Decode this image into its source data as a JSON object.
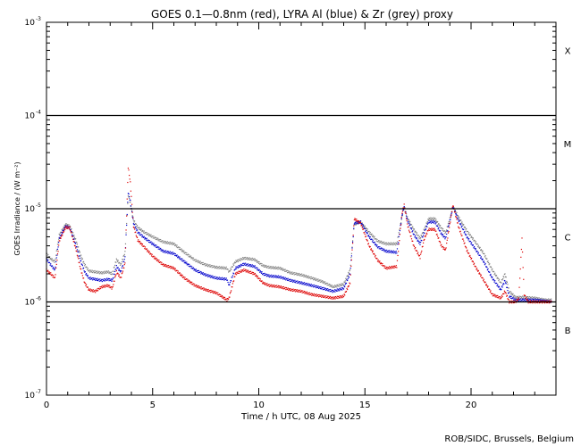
{
  "chart_data": {
    "type": "scatter",
    "title": "GOES 0.1—0.8nm (red), LYRA Al (blue) & Zr (grey) proxy",
    "xlabel": "Time / h UTC, 08 Aug 2025",
    "ylabel": "GOES Irradiance / (W m⁻²)",
    "credit": "ROB/SIDC, Brussels, Belgium",
    "x_scale": "linear",
    "y_scale": "log",
    "xlim": [
      0,
      24
    ],
    "ylim": [
      1e-07,
      0.001
    ],
    "x_ticks": [
      0,
      5,
      10,
      15,
      20
    ],
    "x_tick_labels": [
      "0",
      "5",
      "10",
      "15",
      "20"
    ],
    "y_ticks": [
      1e-07,
      1e-06,
      1e-05,
      0.0001,
      0.001
    ],
    "y_tick_labels": [
      {
        "base": "10",
        "exp": "-7"
      },
      {
        "base": "10",
        "exp": "-6"
      },
      {
        "base": "10",
        "exp": "-5"
      },
      {
        "base": "10",
        "exp": "-4"
      },
      {
        "base": "10",
        "exp": "-3"
      }
    ],
    "flare_class_lines": [
      1e-06,
      1e-05,
      0.0001
    ],
    "flare_classes": [
      {
        "label": "X",
        "y": 0.0005
      },
      {
        "label": "M",
        "y": 5e-05
      },
      {
        "label": "C",
        "y": 5e-06
      },
      {
        "label": "B",
        "y": 5e-07
      }
    ],
    "series": [
      {
        "color": "#808080",
        "points": [
          [
            0,
            3.3e-06
          ],
          [
            0.2,
            2.9e-06
          ],
          [
            0.4,
            2.7e-06
          ],
          [
            0.6,
            5.2e-06
          ],
          [
            0.9,
            6.8e-06
          ],
          [
            1.1,
            6.5e-06
          ],
          [
            1.4,
            4.5e-06
          ],
          [
            1.6,
            3.2e-06
          ],
          [
            1.8,
            2.5e-06
          ],
          [
            2.0,
            2.15e-06
          ],
          [
            2.3,
            2.1e-06
          ],
          [
            2.6,
            2.05e-06
          ],
          [
            2.9,
            2.1e-06
          ],
          [
            3.1,
            2e-06
          ],
          [
            3.3,
            2.85e-06
          ],
          [
            3.5,
            2.5e-06
          ],
          [
            3.7,
            3.4e-06
          ],
          [
            3.85,
            1.4e-05
          ],
          [
            3.95,
            1.15e-05
          ],
          [
            4.1,
            7.5e-06
          ],
          [
            4.3,
            6.3e-06
          ],
          [
            4.6,
            5.6e-06
          ],
          [
            5.0,
            5e-06
          ],
          [
            5.5,
            4.4e-06
          ],
          [
            6.0,
            4.2e-06
          ],
          [
            6.5,
            3.4e-06
          ],
          [
            7.0,
            2.8e-06
          ],
          [
            7.5,
            2.5e-06
          ],
          [
            8.0,
            2.35e-06
          ],
          [
            8.5,
            2.3e-06
          ],
          [
            8.6,
            2.1e-06
          ],
          [
            8.9,
            2.7e-06
          ],
          [
            9.3,
            2.95e-06
          ],
          [
            9.8,
            2.85e-06
          ],
          [
            10.2,
            2.45e-06
          ],
          [
            10.5,
            2.35e-06
          ],
          [
            11.0,
            2.3e-06
          ],
          [
            11.5,
            2.05e-06
          ],
          [
            12.0,
            1.95e-06
          ],
          [
            12.5,
            1.8e-06
          ],
          [
            13.0,
            1.65e-06
          ],
          [
            13.5,
            1.45e-06
          ],
          [
            14.0,
            1.55e-06
          ],
          [
            14.3,
            2.2e-06
          ],
          [
            14.5,
            6.8e-06
          ],
          [
            14.8,
            7.2e-06
          ],
          [
            15.2,
            5.6e-06
          ],
          [
            15.6,
            4.5e-06
          ],
          [
            16.0,
            4.2e-06
          ],
          [
            16.5,
            4.2e-06
          ],
          [
            16.75,
            8.2e-06
          ],
          [
            16.85,
            1.05e-05
          ],
          [
            17.0,
            8e-06
          ],
          [
            17.3,
            6e-06
          ],
          [
            17.6,
            4.8e-06
          ],
          [
            17.8,
            6e-06
          ],
          [
            18.0,
            7.8e-06
          ],
          [
            18.3,
            7.8e-06
          ],
          [
            18.6,
            6.2e-06
          ],
          [
            18.8,
            5.5e-06
          ],
          [
            19.0,
            7.8e-06
          ],
          [
            19.15,
            1.05e-05
          ],
          [
            19.4,
            8.2e-06
          ],
          [
            19.8,
            5.8e-06
          ],
          [
            20.2,
            4.4e-06
          ],
          [
            20.6,
            3.3e-06
          ],
          [
            21.0,
            2.2e-06
          ],
          [
            21.4,
            1.6e-06
          ],
          [
            21.6,
            2e-06
          ],
          [
            21.8,
            1.3e-06
          ],
          [
            22.1,
            1.12e-06
          ],
          [
            22.5,
            1.12e-06
          ],
          [
            23.0,
            1.1e-06
          ],
          [
            23.5,
            1.05e-06
          ],
          [
            23.8,
            1.05e-06
          ]
        ]
      },
      {
        "color": "#0000cc",
        "points": [
          [
            0,
            2.9e-06
          ],
          [
            0.2,
            2.5e-06
          ],
          [
            0.4,
            2.2e-06
          ],
          [
            0.6,
            4.8e-06
          ],
          [
            0.9,
            6.5e-06
          ],
          [
            1.1,
            6.2e-06
          ],
          [
            1.4,
            4e-06
          ],
          [
            1.6,
            2.8e-06
          ],
          [
            1.8,
            2.1e-06
          ],
          [
            2.0,
            1.8e-06
          ],
          [
            2.3,
            1.75e-06
          ],
          [
            2.6,
            1.7e-06
          ],
          [
            2.9,
            1.75e-06
          ],
          [
            3.1,
            1.7e-06
          ],
          [
            3.3,
            2.4e-06
          ],
          [
            3.5,
            2.1e-06
          ],
          [
            3.7,
            3e-06
          ],
          [
            3.85,
            1.5e-05
          ],
          [
            3.95,
            1.2e-05
          ],
          [
            4.1,
            7e-06
          ],
          [
            4.3,
            5.6e-06
          ],
          [
            4.6,
            4.9e-06
          ],
          [
            5.0,
            4.2e-06
          ],
          [
            5.5,
            3.5e-06
          ],
          [
            6.0,
            3.3e-06
          ],
          [
            6.5,
            2.7e-06
          ],
          [
            7.0,
            2.2e-06
          ],
          [
            7.5,
            1.95e-06
          ],
          [
            8.0,
            1.8e-06
          ],
          [
            8.5,
            1.75e-06
          ],
          [
            8.6,
            1.5e-06
          ],
          [
            8.9,
            2.3e-06
          ],
          [
            9.3,
            2.55e-06
          ],
          [
            9.8,
            2.4e-06
          ],
          [
            10.2,
            2e-06
          ],
          [
            10.5,
            1.9e-06
          ],
          [
            11.0,
            1.85e-06
          ],
          [
            11.5,
            1.7e-06
          ],
          [
            12.0,
            1.6e-06
          ],
          [
            12.5,
            1.5e-06
          ],
          [
            13.0,
            1.4e-06
          ],
          [
            13.5,
            1.3e-06
          ],
          [
            14.0,
            1.4e-06
          ],
          [
            14.3,
            2e-06
          ],
          [
            14.5,
            7e-06
          ],
          [
            14.8,
            7.2e-06
          ],
          [
            15.2,
            5e-06
          ],
          [
            15.6,
            3.9e-06
          ],
          [
            16.0,
            3.5e-06
          ],
          [
            16.5,
            3.4e-06
          ],
          [
            16.75,
            8.5e-06
          ],
          [
            16.85,
            1.05e-05
          ],
          [
            17.0,
            7.6e-06
          ],
          [
            17.3,
            5.3e-06
          ],
          [
            17.6,
            4.2e-06
          ],
          [
            17.8,
            5.6e-06
          ],
          [
            18.0,
            7.2e-06
          ],
          [
            18.3,
            7.2e-06
          ],
          [
            18.6,
            5.4e-06
          ],
          [
            18.8,
            4.8e-06
          ],
          [
            19.0,
            7.4e-06
          ],
          [
            19.15,
            1.05e-05
          ],
          [
            19.4,
            7.6e-06
          ],
          [
            19.8,
            5e-06
          ],
          [
            20.2,
            3.7e-06
          ],
          [
            20.6,
            2.7e-06
          ],
          [
            21.0,
            1.8e-06
          ],
          [
            21.4,
            1.35e-06
          ],
          [
            21.6,
            1.7e-06
          ],
          [
            21.8,
            1.15e-06
          ],
          [
            22.1,
            1.05e-06
          ],
          [
            22.5,
            1.05e-06
          ],
          [
            23.0,
            1.05e-06
          ],
          [
            23.5,
            1.02e-06
          ],
          [
            23.8,
            1e-06
          ]
        ]
      },
      {
        "color": "#dd0000",
        "points": [
          [
            0,
            2.2e-06
          ],
          [
            0.2,
            2e-06
          ],
          [
            0.4,
            1.8e-06
          ],
          [
            0.6,
            4.5e-06
          ],
          [
            0.9,
            6.3e-06
          ],
          [
            1.1,
            6.2e-06
          ],
          [
            1.4,
            3.6e-06
          ],
          [
            1.6,
            2.3e-06
          ],
          [
            1.8,
            1.6e-06
          ],
          [
            2.0,
            1.35e-06
          ],
          [
            2.3,
            1.3e-06
          ],
          [
            2.6,
            1.45e-06
          ],
          [
            2.9,
            1.5e-06
          ],
          [
            3.1,
            1.4e-06
          ],
          [
            3.3,
            2.1e-06
          ],
          [
            3.5,
            1.8e-06
          ],
          [
            3.7,
            2.6e-06
          ],
          [
            3.85,
            2.8e-05
          ],
          [
            3.95,
            1.9e-05
          ],
          [
            4.1,
            6.5e-06
          ],
          [
            4.3,
            4.6e-06
          ],
          [
            4.6,
            3.9e-06
          ],
          [
            5.0,
            3.1e-06
          ],
          [
            5.5,
            2.5e-06
          ],
          [
            6.0,
            2.3e-06
          ],
          [
            6.5,
            1.8e-06
          ],
          [
            7.0,
            1.5e-06
          ],
          [
            7.5,
            1.35e-06
          ],
          [
            8.0,
            1.25e-06
          ],
          [
            8.5,
            1.05e-06
          ],
          [
            8.6,
            1.1e-06
          ],
          [
            8.9,
            2e-06
          ],
          [
            9.3,
            2.2e-06
          ],
          [
            9.8,
            2e-06
          ],
          [
            10.2,
            1.6e-06
          ],
          [
            10.5,
            1.5e-06
          ],
          [
            11.0,
            1.45e-06
          ],
          [
            11.5,
            1.35e-06
          ],
          [
            12.0,
            1.3e-06
          ],
          [
            12.5,
            1.2e-06
          ],
          [
            13.0,
            1.15e-06
          ],
          [
            13.5,
            1.1e-06
          ],
          [
            14.0,
            1.15e-06
          ],
          [
            14.3,
            1.6e-06
          ],
          [
            14.5,
            7.8e-06
          ],
          [
            14.8,
            7e-06
          ],
          [
            15.2,
            4e-06
          ],
          [
            15.6,
            2.8e-06
          ],
          [
            16.0,
            2.3e-06
          ],
          [
            16.5,
            2.4e-06
          ],
          [
            16.75,
            9e-06
          ],
          [
            16.85,
            1.1e-05
          ],
          [
            17.0,
            6.8e-06
          ],
          [
            17.3,
            4e-06
          ],
          [
            17.6,
            3e-06
          ],
          [
            17.8,
            4.8e-06
          ],
          [
            18.0,
            6e-06
          ],
          [
            18.3,
            6e-06
          ],
          [
            18.6,
            4e-06
          ],
          [
            18.8,
            3.6e-06
          ],
          [
            19.0,
            6.8e-06
          ],
          [
            19.15,
            1.1e-05
          ],
          [
            19.4,
            6.5e-06
          ],
          [
            19.8,
            3.6e-06
          ],
          [
            20.2,
            2.4e-06
          ],
          [
            20.6,
            1.7e-06
          ],
          [
            21.0,
            1.2e-06
          ],
          [
            21.4,
            1.1e-06
          ],
          [
            21.6,
            1.3e-06
          ],
          [
            21.8,
            1e-06
          ],
          [
            22.1,
            1e-06
          ],
          [
            22.25,
            1.1e-06
          ],
          [
            22.4,
            4.8e-06
          ],
          [
            22.5,
            1.2e-06
          ],
          [
            22.7,
            1e-06
          ],
          [
            23.0,
            1e-06
          ],
          [
            23.5,
            1e-06
          ],
          [
            23.8,
            1e-06
          ]
        ]
      }
    ]
  }
}
